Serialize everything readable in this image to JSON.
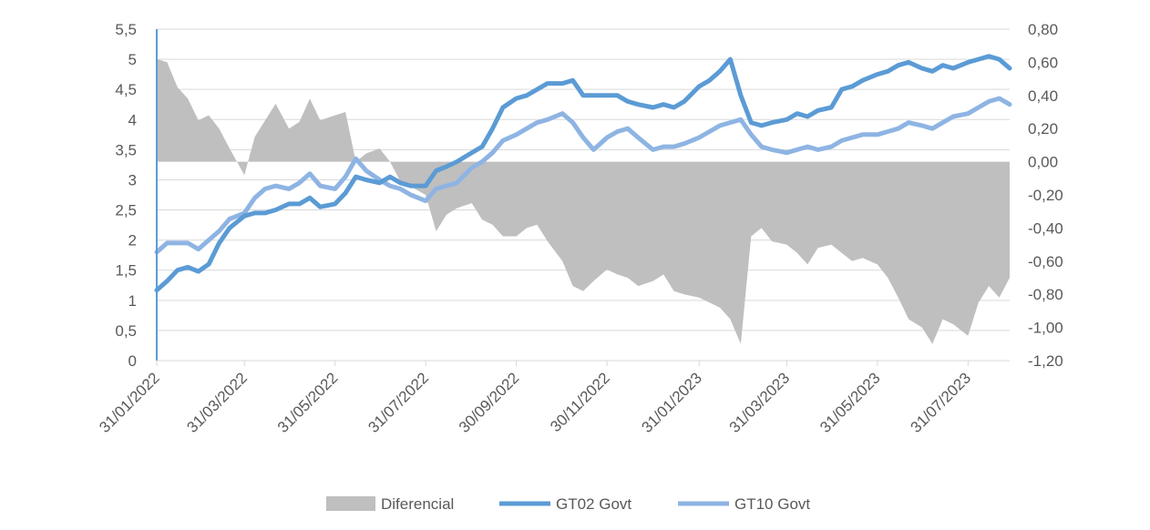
{
  "chart_data": {
    "type": "line",
    "title": "",
    "xlabel": "",
    "ylabel": "",
    "y_left": {
      "range": [
        0,
        5.5
      ],
      "ticks": [
        "0",
        "0,5",
        "1",
        "1,5",
        "2",
        "2,5",
        "3",
        "3,5",
        "4",
        "4,5",
        "5",
        "5,5"
      ]
    },
    "y_right": {
      "range": [
        -1.2,
        0.8
      ],
      "ticks": [
        "-1,20",
        "-1,00",
        "-0,80",
        "-0,60",
        "-0,40",
        "-0,20",
        "0,00",
        "0,20",
        "0,40",
        "0,60",
        "0,80"
      ]
    },
    "x_tick_labels": [
      "31/01/2022",
      "31/03/2022",
      "31/05/2022",
      "31/07/2022",
      "30/09/2022",
      "30/11/2022",
      "31/01/2023",
      "31/03/2023",
      "31/05/2023",
      "31/07/2023"
    ],
    "grid": true,
    "legend_position": "bottom",
    "colors": {
      "Diferencial": "#bfbfbf",
      "GT02 Govt": "#5b9bd5",
      "GT10 Govt": "#8eb4e3",
      "grid": "#d9d9d9",
      "axis_line": "#5b9bd5",
      "tick_text": "#595959"
    },
    "series": [
      {
        "name": "Diferencial",
        "kind": "area",
        "axis": "right",
        "x": [
          "2022-01-31",
          "2022-02-07",
          "2022-02-14",
          "2022-02-21",
          "2022-02-28",
          "2022-03-07",
          "2022-03-14",
          "2022-03-21",
          "2022-03-31",
          "2022-04-07",
          "2022-04-14",
          "2022-04-21",
          "2022-04-30",
          "2022-05-07",
          "2022-05-14",
          "2022-05-21",
          "2022-05-31",
          "2022-06-07",
          "2022-06-14",
          "2022-06-21",
          "2022-06-30",
          "2022-07-07",
          "2022-07-14",
          "2022-07-21",
          "2022-07-31",
          "2022-08-07",
          "2022-08-14",
          "2022-08-21",
          "2022-08-31",
          "2022-09-07",
          "2022-09-14",
          "2022-09-21",
          "2022-09-30",
          "2022-10-07",
          "2022-10-14",
          "2022-10-21",
          "2022-10-31",
          "2022-11-07",
          "2022-11-14",
          "2022-11-21",
          "2022-11-30",
          "2022-12-07",
          "2022-12-14",
          "2022-12-21",
          "2022-12-31",
          "2023-01-07",
          "2023-01-14",
          "2023-01-21",
          "2023-01-31",
          "2023-02-07",
          "2023-02-14",
          "2023-02-21",
          "2023-02-28",
          "2023-03-07",
          "2023-03-14",
          "2023-03-21",
          "2023-03-31",
          "2023-04-07",
          "2023-04-14",
          "2023-04-21",
          "2023-04-30",
          "2023-05-07",
          "2023-05-14",
          "2023-05-21",
          "2023-05-31",
          "2023-06-07",
          "2023-06-14",
          "2023-06-21",
          "2023-06-30",
          "2023-07-07",
          "2023-07-14",
          "2023-07-21",
          "2023-07-31",
          "2023-08-07",
          "2023-08-14",
          "2023-08-21",
          "2023-08-28"
        ],
        "values": [
          0.62,
          0.6,
          0.45,
          0.38,
          0.25,
          0.28,
          0.2,
          0.08,
          -0.08,
          0.15,
          0.25,
          0.35,
          0.2,
          0.24,
          0.38,
          0.25,
          0.28,
          0.3,
          0.0,
          0.05,
          0.08,
          0.0,
          -0.12,
          -0.15,
          -0.2,
          -0.42,
          -0.32,
          -0.28,
          -0.25,
          -0.35,
          -0.38,
          -0.45,
          -0.45,
          -0.4,
          -0.38,
          -0.48,
          -0.6,
          -0.75,
          -0.78,
          -0.72,
          -0.65,
          -0.68,
          -0.7,
          -0.75,
          -0.72,
          -0.68,
          -0.78,
          -0.8,
          -0.82,
          -0.85,
          -0.88,
          -0.95,
          -1.1,
          -0.45,
          -0.4,
          -0.48,
          -0.5,
          -0.55,
          -0.62,
          -0.52,
          -0.5,
          -0.55,
          -0.6,
          -0.58,
          -0.62,
          -0.7,
          -0.82,
          -0.95,
          -1.0,
          -1.1,
          -0.95,
          -0.98,
          -1.05,
          -0.85,
          -0.75,
          -0.82,
          -0.7
        ]
      },
      {
        "name": "GT02 Govt",
        "kind": "line",
        "axis": "left",
        "x": [
          "2022-01-31",
          "2022-02-07",
          "2022-02-14",
          "2022-02-21",
          "2022-02-28",
          "2022-03-07",
          "2022-03-14",
          "2022-03-21",
          "2022-03-31",
          "2022-04-07",
          "2022-04-14",
          "2022-04-21",
          "2022-04-30",
          "2022-05-07",
          "2022-05-14",
          "2022-05-21",
          "2022-05-31",
          "2022-06-07",
          "2022-06-14",
          "2022-06-21",
          "2022-06-30",
          "2022-07-07",
          "2022-07-14",
          "2022-07-21",
          "2022-07-31",
          "2022-08-07",
          "2022-08-14",
          "2022-08-21",
          "2022-08-31",
          "2022-09-07",
          "2022-09-14",
          "2022-09-21",
          "2022-09-30",
          "2022-10-07",
          "2022-10-14",
          "2022-10-21",
          "2022-10-31",
          "2022-11-07",
          "2022-11-14",
          "2022-11-21",
          "2022-11-30",
          "2022-12-07",
          "2022-12-14",
          "2022-12-21",
          "2022-12-31",
          "2023-01-07",
          "2023-01-14",
          "2023-01-21",
          "2023-01-31",
          "2023-02-07",
          "2023-02-14",
          "2023-02-21",
          "2023-02-28",
          "2023-03-07",
          "2023-03-14",
          "2023-03-21",
          "2023-03-31",
          "2023-04-07",
          "2023-04-14",
          "2023-04-21",
          "2023-04-30",
          "2023-05-07",
          "2023-05-14",
          "2023-05-21",
          "2023-05-31",
          "2023-06-07",
          "2023-06-14",
          "2023-06-21",
          "2023-06-30",
          "2023-07-07",
          "2023-07-14",
          "2023-07-21",
          "2023-07-31",
          "2023-08-07",
          "2023-08-14",
          "2023-08-21",
          "2023-08-28"
        ],
        "values": [
          1.17,
          1.32,
          1.5,
          1.55,
          1.48,
          1.6,
          1.95,
          2.2,
          2.4,
          2.45,
          2.45,
          2.5,
          2.6,
          2.6,
          2.7,
          2.55,
          2.6,
          2.78,
          3.05,
          3.0,
          2.95,
          3.05,
          2.95,
          2.9,
          2.9,
          3.15,
          3.22,
          3.3,
          3.45,
          3.55,
          3.85,
          4.2,
          4.35,
          4.4,
          4.5,
          4.6,
          4.6,
          4.65,
          4.4,
          4.4,
          4.4,
          4.4,
          4.3,
          4.25,
          4.2,
          4.25,
          4.2,
          4.3,
          4.55,
          4.65,
          4.8,
          5.0,
          4.4,
          3.95,
          3.9,
          3.95,
          4.0,
          4.1,
          4.05,
          4.15,
          4.2,
          4.5,
          4.55,
          4.65,
          4.75,
          4.8,
          4.9,
          4.95,
          4.85,
          4.8,
          4.9,
          4.85,
          4.95,
          5.0,
          5.05,
          5.0,
          4.85
        ]
      },
      {
        "name": "GT10 Govt",
        "kind": "line",
        "axis": "left",
        "x": [
          "2022-01-31",
          "2022-02-07",
          "2022-02-14",
          "2022-02-21",
          "2022-02-28",
          "2022-03-07",
          "2022-03-14",
          "2022-03-21",
          "2022-03-31",
          "2022-04-07",
          "2022-04-14",
          "2022-04-21",
          "2022-04-30",
          "2022-05-07",
          "2022-05-14",
          "2022-05-21",
          "2022-05-31",
          "2022-06-07",
          "2022-06-14",
          "2022-06-21",
          "2022-06-30",
          "2022-07-07",
          "2022-07-14",
          "2022-07-21",
          "2022-07-31",
          "2022-08-07",
          "2022-08-14",
          "2022-08-21",
          "2022-08-31",
          "2022-09-07",
          "2022-09-14",
          "2022-09-21",
          "2022-09-30",
          "2022-10-07",
          "2022-10-14",
          "2022-10-21",
          "2022-10-31",
          "2022-11-07",
          "2022-11-14",
          "2022-11-21",
          "2022-11-30",
          "2022-12-07",
          "2022-12-14",
          "2022-12-21",
          "2022-12-31",
          "2023-01-07",
          "2023-01-14",
          "2023-01-21",
          "2023-01-31",
          "2023-02-07",
          "2023-02-14",
          "2023-02-21",
          "2023-02-28",
          "2023-03-07",
          "2023-03-14",
          "2023-03-21",
          "2023-03-31",
          "2023-04-07",
          "2023-04-14",
          "2023-04-21",
          "2023-04-30",
          "2023-05-07",
          "2023-05-14",
          "2023-05-21",
          "2023-05-31",
          "2023-06-07",
          "2023-06-14",
          "2023-06-21",
          "2023-06-30",
          "2023-07-07",
          "2023-07-14",
          "2023-07-21",
          "2023-07-31",
          "2023-08-07",
          "2023-08-14",
          "2023-08-21",
          "2023-08-28"
        ],
        "values": [
          1.8,
          1.95,
          1.95,
          1.95,
          1.85,
          2.0,
          2.15,
          2.35,
          2.45,
          2.7,
          2.85,
          2.9,
          2.85,
          2.95,
          3.1,
          2.9,
          2.85,
          3.05,
          3.35,
          3.15,
          3.0,
          2.9,
          2.85,
          2.75,
          2.65,
          2.85,
          2.9,
          2.95,
          3.2,
          3.3,
          3.45,
          3.65,
          3.75,
          3.85,
          3.95,
          4.0,
          4.1,
          3.95,
          3.7,
          3.5,
          3.7,
          3.8,
          3.85,
          3.7,
          3.5,
          3.55,
          3.55,
          3.6,
          3.7,
          3.8,
          3.9,
          3.95,
          4.0,
          3.75,
          3.55,
          3.5,
          3.45,
          3.5,
          3.55,
          3.5,
          3.55,
          3.65,
          3.7,
          3.75,
          3.75,
          3.8,
          3.85,
          3.95,
          3.9,
          3.85,
          3.95,
          4.05,
          4.1,
          4.2,
          4.3,
          4.35,
          4.25
        ]
      }
    ]
  }
}
